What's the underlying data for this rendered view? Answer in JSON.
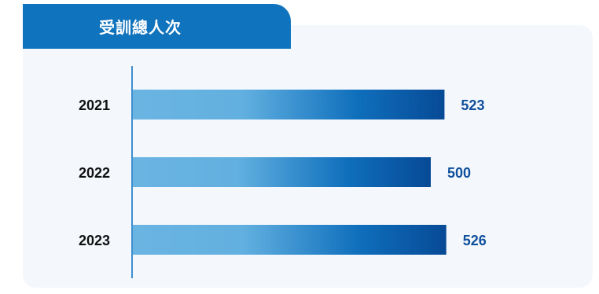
{
  "chart_data": {
    "type": "bar",
    "orientation": "horizontal",
    "title": "受訓總人次",
    "categories": [
      "2021",
      "2022",
      "2023"
    ],
    "values": [
      523,
      500,
      526
    ],
    "data_labels": [
      "523",
      "500",
      "526"
    ],
    "legend": "none",
    "grid": false
  },
  "colors": {
    "title_background": "#0f73bd",
    "bar_gradient_start": "#6ab4e2",
    "bar_gradient_end": "#074a96",
    "value_text": "#0f4f9c",
    "panel_background": "#f4f8fc"
  }
}
